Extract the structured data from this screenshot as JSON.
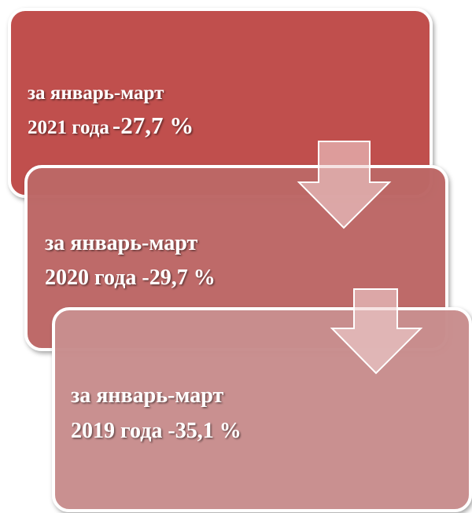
{
  "nodes": [
    {
      "period": "за январь-март",
      "year": "2021 года",
      "value": "-27,7 %"
    },
    {
      "period": "за январь-март",
      "year": "2020 года",
      "value": "-29,7 %"
    },
    {
      "period": "за январь-март",
      "year": "2019 года",
      "value": "-35,1 %"
    }
  ]
}
